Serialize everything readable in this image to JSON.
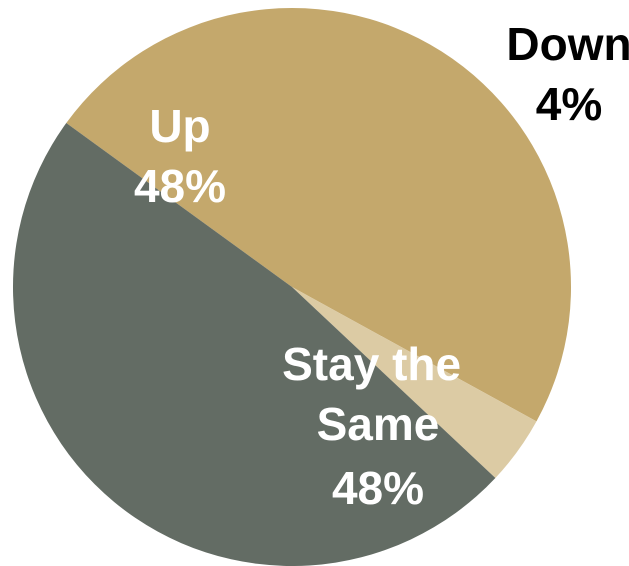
{
  "chart_data": {
    "type": "pie",
    "title": "",
    "slices": [
      {
        "label": "Up",
        "value": 48,
        "value_label": "48%",
        "color": "#c4a86c"
      },
      {
        "label": "Down",
        "value": 4,
        "value_label": "4%",
        "color": "#dccba4"
      },
      {
        "label": "Stay the Same",
        "value": 48,
        "value_label": "48%",
        "color": "#636c64"
      }
    ],
    "label_colors": {
      "inside": "#ffffff",
      "outside": "#000000"
    }
  }
}
